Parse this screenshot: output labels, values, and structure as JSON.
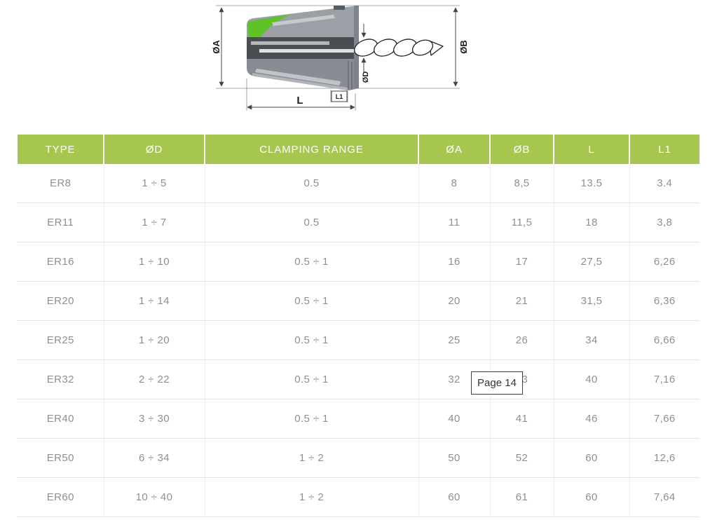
{
  "diagram": {
    "labels": {
      "dia_a": "ØA",
      "dia_b": "ØB",
      "dia_d": "ØD",
      "length": "L",
      "length1": "L1"
    }
  },
  "table": {
    "headers": [
      "TYPE",
      "ØD",
      "CLAMPING RANGE",
      "ØA",
      "ØB",
      "L",
      "L1"
    ],
    "rows": [
      [
        "ER8",
        "1 ÷ 5",
        "0.5",
        "8",
        "8,5",
        "13.5",
        "3.4"
      ],
      [
        "ER11",
        "1 ÷ 7",
        "0.5",
        "11",
        "11,5",
        "18",
        "3,8"
      ],
      [
        "ER16",
        "1 ÷ 10",
        "0.5 ÷ 1",
        "16",
        "17",
        "27,5",
        "6,26"
      ],
      [
        "ER20",
        "1 ÷ 14",
        "0.5 ÷ 1",
        "20",
        "21",
        "31,5",
        "6,36"
      ],
      [
        "ER25",
        "1 ÷ 20",
        "0.5 ÷ 1",
        "25",
        "26",
        "34",
        "6,66"
      ],
      [
        "ER32",
        "2 ÷ 22",
        "0.5 ÷ 1",
        "32",
        "33",
        "40",
        "7,16"
      ],
      [
        "ER40",
        "3 ÷ 30",
        "0.5 ÷ 1",
        "40",
        "41",
        "46",
        "7,66"
      ],
      [
        "ER50",
        "6 ÷ 34",
        "1 ÷ 2",
        "50",
        "52",
        "60",
        "12,6"
      ],
      [
        "ER60",
        "10 ÷ 40",
        "1 ÷ 2",
        "60",
        "61",
        "60",
        "7,64"
      ]
    ]
  },
  "tooltip": {
    "text": "Page 14"
  },
  "colors": {
    "header_bg": "#a7c64f",
    "header_text": "#ffffff",
    "cell_text": "#8f8f8f",
    "diagram_green": "#5ec228",
    "diagram_gray": "#8d9399",
    "tooltip_border": "#3f3f3f"
  }
}
